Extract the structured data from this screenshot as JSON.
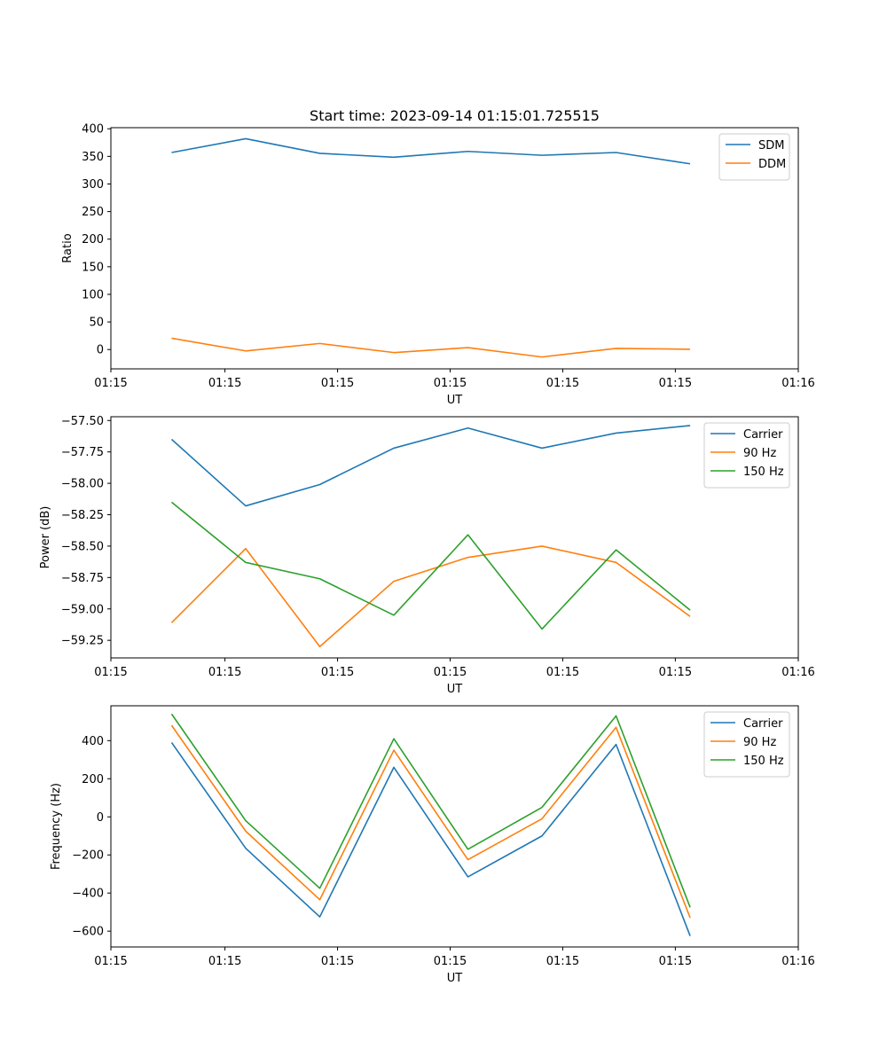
{
  "colors": {
    "blue": "#1f77b4",
    "orange": "#ff7f0e",
    "green": "#2ca02c"
  },
  "chart_data": [
    {
      "type": "line",
      "title": "Start time: 2023-09-14 01:15:01.725515",
      "xlabel": "UT",
      "ylabel": "Ratio",
      "x": [
        1,
        2,
        3,
        4,
        5,
        6,
        7,
        8
      ],
      "xlim": [
        0.18,
        9.46
      ],
      "xticks": [
        0.18,
        1.72,
        3.24,
        4.76,
        6.28,
        7.8,
        9.46
      ],
      "xtick_labels": [
        "01:15",
        "01:15",
        "01:15",
        "01:15",
        "01:15",
        "01:15",
        "01:16"
      ],
      "ylim": [
        -35,
        402
      ],
      "yticks": [
        0,
        50,
        100,
        150,
        200,
        250,
        300,
        350,
        400
      ],
      "ytick_labels": [
        "0",
        "50",
        "100",
        "150",
        "200",
        "250",
        "300",
        "350",
        "400"
      ],
      "legend_position": "upper right",
      "series": [
        {
          "name": "SDM",
          "color_key": "blue",
          "values": [
            357,
            382,
            355.5,
            348.5,
            359,
            352,
            357,
            336.5
          ]
        },
        {
          "name": "DDM",
          "color_key": "orange",
          "values": [
            20.5,
            -2.5,
            11,
            -5.5,
            3.5,
            -13.5,
            2,
            0.5
          ]
        }
      ]
    },
    {
      "type": "line",
      "title": "",
      "xlabel": "UT",
      "ylabel": "Power (dB)",
      "x": [
        1,
        2,
        3,
        4,
        5,
        6,
        7,
        8
      ],
      "xlim": [
        0.18,
        9.46
      ],
      "xticks": [
        0.18,
        1.72,
        3.24,
        4.76,
        6.28,
        7.8,
        9.46
      ],
      "xtick_labels": [
        "01:15",
        "01:15",
        "01:15",
        "01:15",
        "01:15",
        "01:15",
        "01:16"
      ],
      "ylim": [
        -59.39,
        -57.47
      ],
      "yticks": [
        -59.25,
        -59.0,
        -58.75,
        -58.5,
        -58.25,
        -58.0,
        -57.75,
        -57.5
      ],
      "ytick_labels": [
        "−59.25",
        "−59.00",
        "−58.75",
        "−58.50",
        "−58.25",
        "−58.00",
        "−57.75",
        "−57.50"
      ],
      "legend_position": "upper right",
      "series": [
        {
          "name": "Carrier",
          "color_key": "blue",
          "values": [
            -57.65,
            -58.18,
            -58.01,
            -57.72,
            -57.56,
            -57.72,
            -57.6,
            -57.54
          ]
        },
        {
          "name": "90 Hz",
          "color_key": "orange",
          "values": [
            -59.11,
            -58.52,
            -59.3,
            -58.78,
            -58.59,
            -58.5,
            -58.63,
            -59.06
          ]
        },
        {
          "name": "150 Hz",
          "color_key": "green",
          "values": [
            -58.15,
            -58.63,
            -58.76,
            -59.05,
            -58.41,
            -59.16,
            -58.53,
            -59.01
          ]
        }
      ]
    },
    {
      "type": "line",
      "title": "",
      "xlabel": "UT",
      "ylabel": "Frequency (Hz)",
      "x": [
        1,
        2,
        3,
        4,
        5,
        6,
        7,
        8
      ],
      "xlim": [
        0.18,
        9.46
      ],
      "xticks": [
        0.18,
        1.72,
        3.24,
        4.76,
        6.28,
        7.8,
        9.46
      ],
      "xtick_labels": [
        "01:15",
        "01:15",
        "01:15",
        "01:15",
        "01:15",
        "01:15",
        "01:16"
      ],
      "ylim": [
        -683,
        583
      ],
      "yticks": [
        -600,
        -400,
        -200,
        0,
        200,
        400
      ],
      "ytick_labels": [
        "−600",
        "−400",
        "−200",
        "0",
        "200",
        "400"
      ],
      "legend_position": "upper right",
      "series": [
        {
          "name": "Carrier",
          "color_key": "blue",
          "values": [
            390,
            -165,
            -525,
            260,
            -315,
            -100,
            380,
            -625
          ]
        },
        {
          "name": "90 Hz",
          "color_key": "orange",
          "values": [
            480,
            -75,
            -435,
            350,
            -225,
            -10,
            470,
            -530
          ]
        },
        {
          "name": "150 Hz",
          "color_key": "green",
          "values": [
            540,
            -20,
            -375,
            410,
            -170,
            50,
            530,
            -475
          ]
        }
      ]
    }
  ]
}
